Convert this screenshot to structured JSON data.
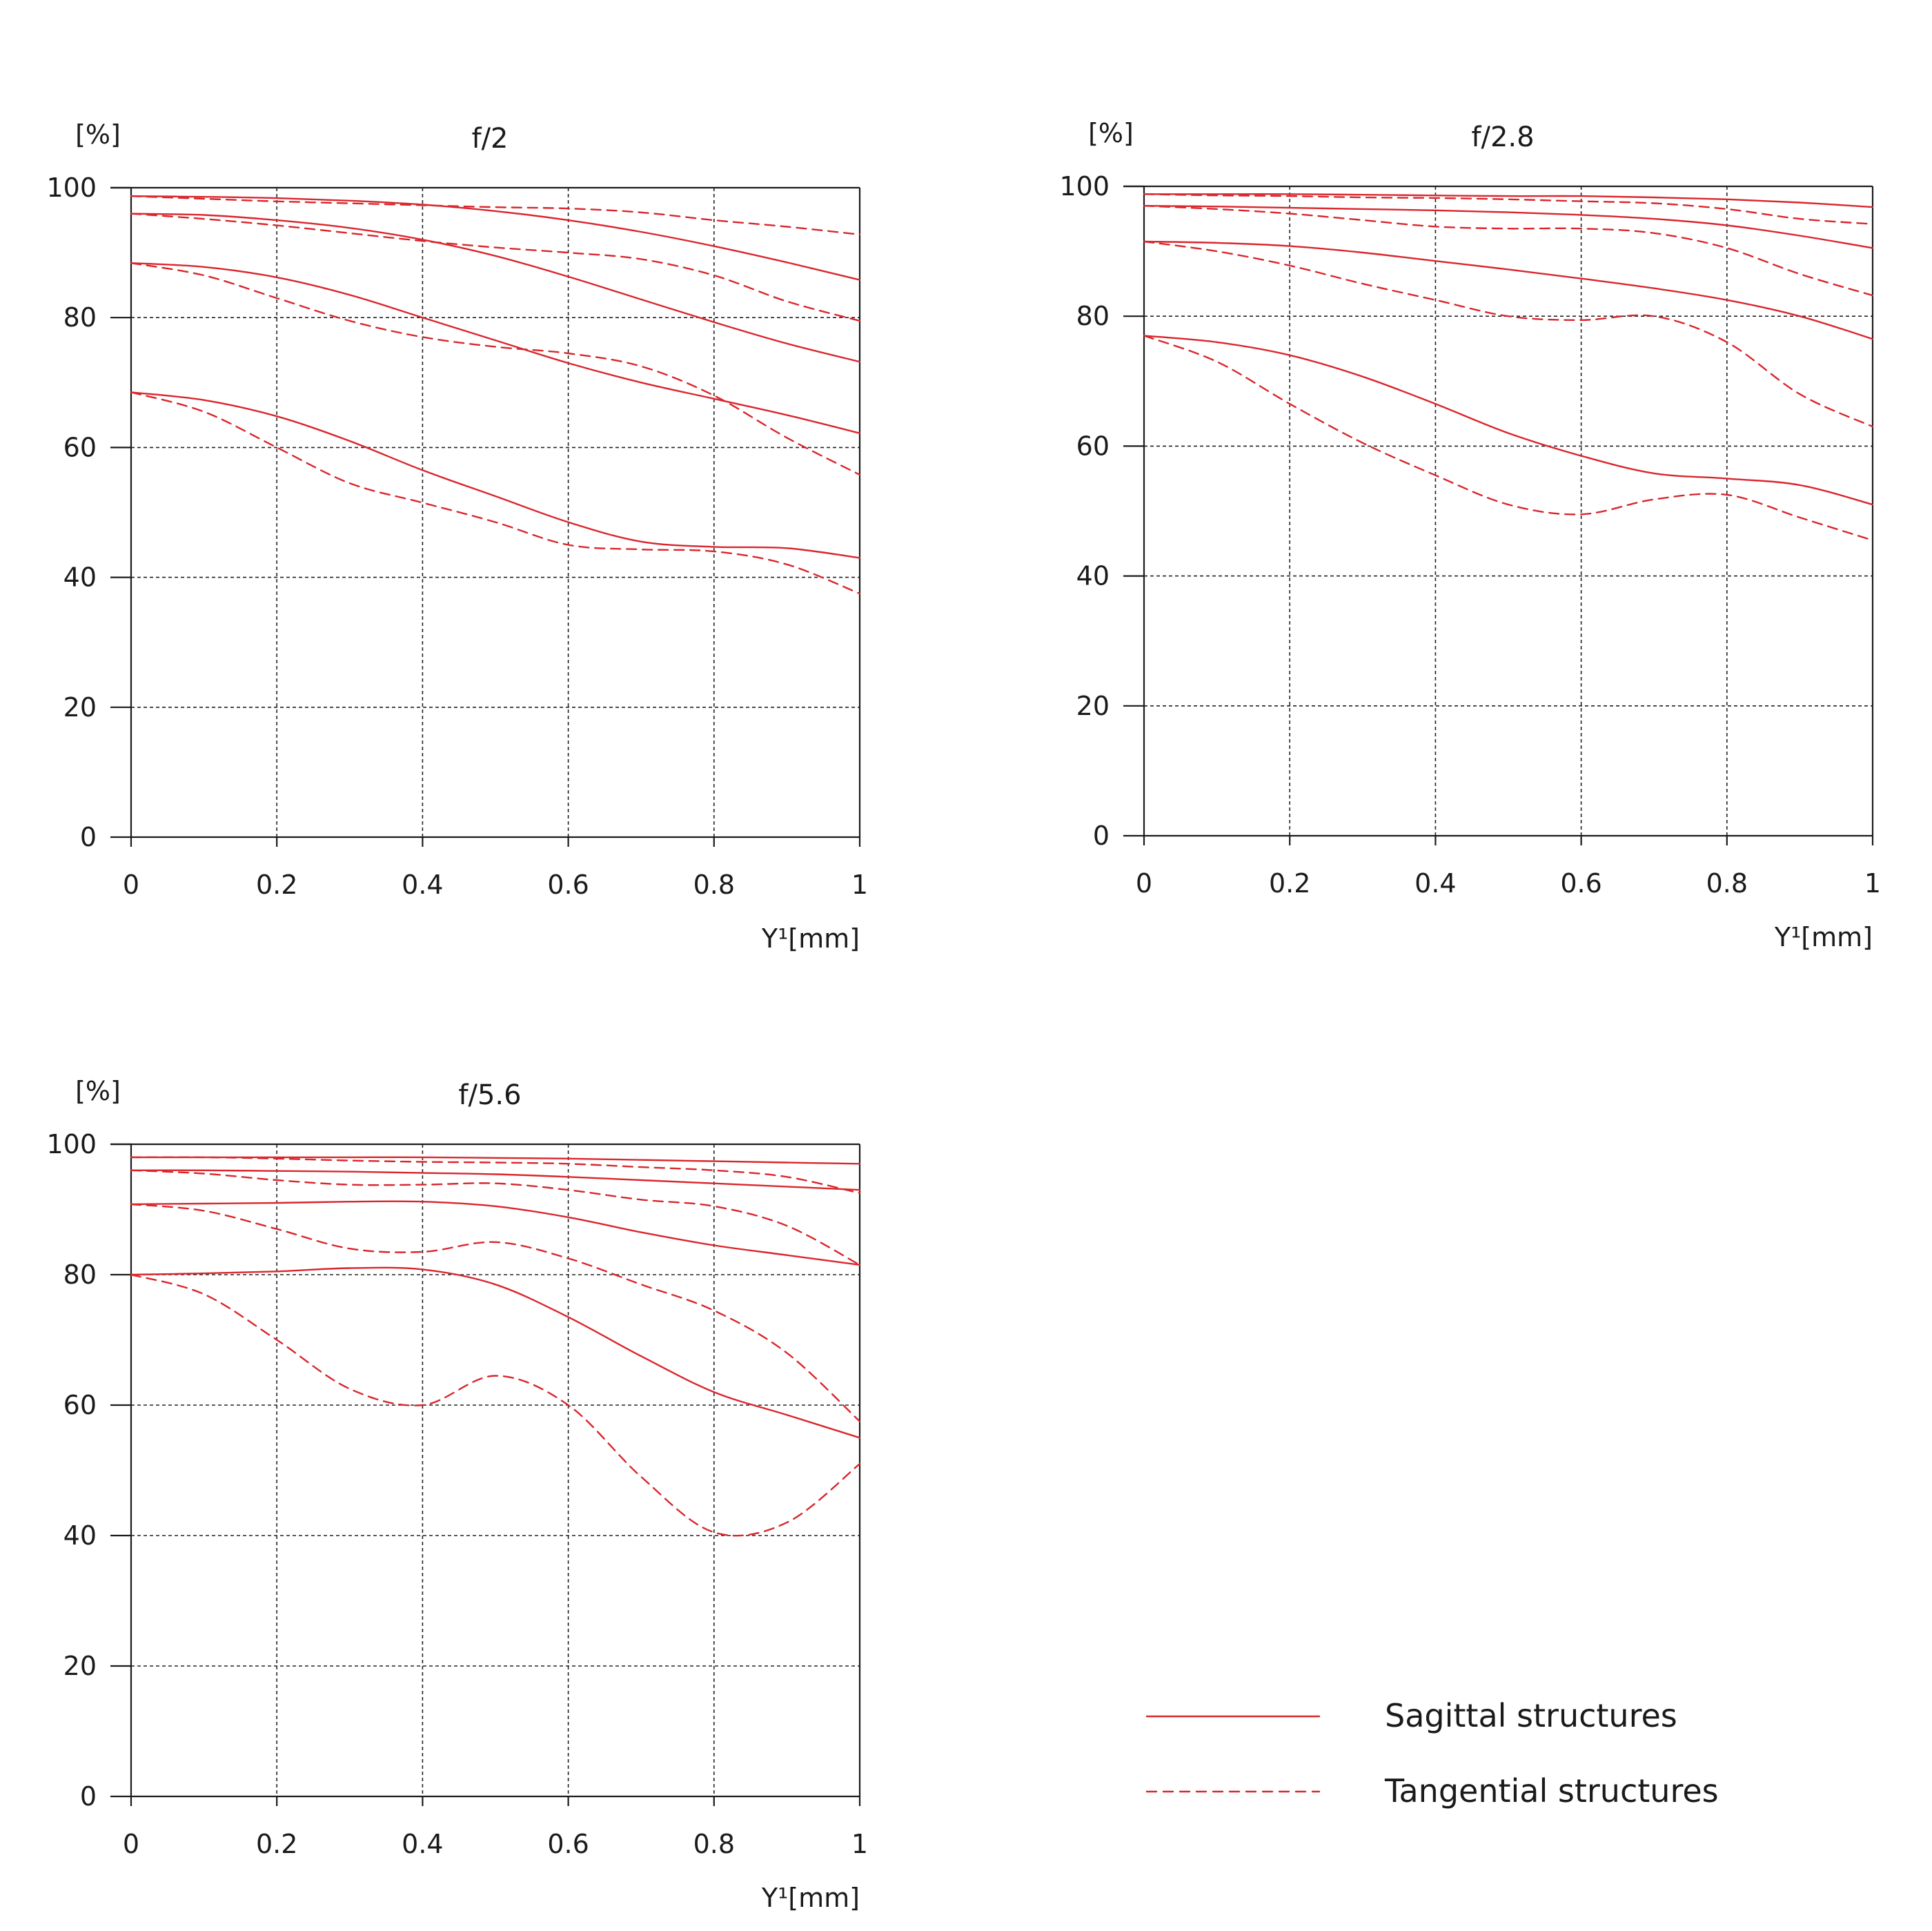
{
  "colors": {
    "curve": "#d9262c",
    "axis": "#1a1a1a",
    "grid": "#222222"
  },
  "legend": {
    "sagittal_label": "Sagittal structures",
    "tangential_label": "Tangential structures"
  },
  "chart_data": [
    {
      "type": "line",
      "title": "f/2",
      "ylabel": "[%]",
      "xlabel": "Y¹[mm]",
      "xlim": [
        0,
        1
      ],
      "ylim": [
        0,
        100
      ],
      "x_ticks": [
        "0",
        "0.2",
        "0.4",
        "0.6",
        "0.8",
        "1"
      ],
      "y_ticks": [
        "0",
        "20",
        "40",
        "60",
        "80",
        "100"
      ],
      "grid": true,
      "x": [
        0,
        0.1,
        0.2,
        0.3,
        0.4,
        0.5,
        0.6,
        0.7,
        0.8,
        0.9,
        1.0
      ],
      "series": [
        {
          "style": "solid",
          "values": [
            98.7,
            98.6,
            98.4,
            98.0,
            97.4,
            96.4,
            95.0,
            93.2,
            91.0,
            88.5,
            85.8
          ]
        },
        {
          "style": "dashed",
          "values": [
            98.7,
            98.3,
            97.9,
            97.6,
            97.3,
            97.0,
            96.8,
            96.2,
            95.0,
            94.0,
            92.8
          ]
        },
        {
          "style": "solid",
          "values": [
            96.0,
            95.8,
            95.0,
            93.8,
            92.0,
            89.5,
            86.3,
            82.8,
            79.3,
            76.0,
            73.2
          ]
        },
        {
          "style": "dashed",
          "values": [
            96.0,
            95.2,
            94.2,
            93.0,
            91.8,
            90.8,
            90.0,
            89.0,
            86.5,
            82.5,
            79.5
          ]
        },
        {
          "style": "solid",
          "values": [
            88.4,
            87.8,
            86.2,
            83.5,
            80.0,
            76.5,
            73.0,
            70.0,
            67.5,
            65.0,
            62.2
          ]
        },
        {
          "style": "dashed",
          "values": [
            88.4,
            86.5,
            83.0,
            79.5,
            77.0,
            75.5,
            74.5,
            72.5,
            68.0,
            61.5,
            55.8
          ]
        },
        {
          "style": "solid",
          "values": [
            68.5,
            67.3,
            64.8,
            61.0,
            56.5,
            52.5,
            48.5,
            45.5,
            44.7,
            44.5,
            43.0
          ]
        },
        {
          "style": "dashed",
          "values": [
            68.5,
            65.5,
            60.0,
            54.5,
            51.5,
            48.5,
            45.0,
            44.3,
            44.0,
            42.0,
            37.5
          ]
        }
      ]
    },
    {
      "type": "line",
      "title": "f/2.8",
      "ylabel": "[%]",
      "xlabel": "Y¹[mm]",
      "xlim": [
        0,
        1
      ],
      "ylim": [
        0,
        100
      ],
      "x_ticks": [
        "0",
        "0.2",
        "0.4",
        "0.6",
        "0.8",
        "1"
      ],
      "y_ticks": [
        "0",
        "20",
        "40",
        "60",
        "80",
        "100"
      ],
      "grid": true,
      "x": [
        0,
        0.1,
        0.2,
        0.3,
        0.4,
        0.5,
        0.6,
        0.7,
        0.8,
        0.9,
        1.0
      ],
      "series": [
        {
          "style": "solid",
          "values": [
            98.8,
            98.8,
            98.8,
            98.7,
            98.6,
            98.5,
            98.5,
            98.3,
            98.0,
            97.5,
            96.8
          ]
        },
        {
          "style": "dashed",
          "values": [
            98.8,
            98.6,
            98.5,
            98.3,
            98.2,
            98.0,
            97.7,
            97.4,
            96.5,
            95.0,
            94.2
          ]
        },
        {
          "style": "solid",
          "values": [
            97.0,
            96.9,
            96.7,
            96.5,
            96.3,
            96.0,
            95.6,
            95.0,
            94.0,
            92.4,
            90.5
          ]
        },
        {
          "style": "dashed",
          "values": [
            97.0,
            96.5,
            95.8,
            94.8,
            93.8,
            93.5,
            93.5,
            92.8,
            90.5,
            86.5,
            83.2
          ]
        },
        {
          "style": "solid",
          "values": [
            91.5,
            91.3,
            90.8,
            89.8,
            88.5,
            87.2,
            85.8,
            84.3,
            82.5,
            80.0,
            76.5
          ]
        },
        {
          "style": "dashed",
          "values": [
            91.5,
            90.0,
            87.8,
            85.0,
            82.5,
            80.0,
            79.4,
            80.0,
            76.0,
            68.0,
            63.0
          ]
        },
        {
          "style": "solid",
          "values": [
            77.0,
            76.0,
            74.0,
            70.7,
            66.5,
            62.0,
            58.5,
            55.8,
            55.0,
            54.0,
            51.0
          ]
        },
        {
          "style": "dashed",
          "values": [
            77.0,
            73.0,
            66.5,
            60.5,
            55.5,
            51.0,
            49.5,
            51.8,
            52.5,
            49.0,
            45.5
          ]
        }
      ]
    },
    {
      "type": "line",
      "title": "f/5.6",
      "ylabel": "[%]",
      "xlabel": "Y¹[mm]",
      "xlim": [
        0,
        1
      ],
      "ylim": [
        0,
        100
      ],
      "x_ticks": [
        "0",
        "0.2",
        "0.4",
        "0.6",
        "0.8",
        "1"
      ],
      "y_ticks": [
        "0",
        "20",
        "40",
        "60",
        "80",
        "100"
      ],
      "grid": true,
      "x": [
        0,
        0.1,
        0.2,
        0.3,
        0.4,
        0.5,
        0.6,
        0.7,
        0.8,
        0.9,
        1.0
      ],
      "series": [
        {
          "style": "solid",
          "values": [
            98.0,
            98.0,
            98.0,
            98.0,
            98.0,
            97.9,
            97.8,
            97.6,
            97.4,
            97.2,
            97.0
          ]
        },
        {
          "style": "dashed",
          "values": [
            98.0,
            98.0,
            97.8,
            97.5,
            97.3,
            97.2,
            97.0,
            96.5,
            96.0,
            95.0,
            92.5
          ]
        },
        {
          "style": "solid",
          "values": [
            96.0,
            96.0,
            95.9,
            95.8,
            95.6,
            95.4,
            95.0,
            94.5,
            94.0,
            93.5,
            93.0
          ]
        },
        {
          "style": "dashed",
          "values": [
            96.0,
            95.5,
            94.5,
            93.8,
            93.8,
            94.0,
            93.0,
            91.5,
            90.5,
            87.5,
            81.5
          ]
        },
        {
          "style": "solid",
          "values": [
            90.8,
            90.9,
            91.0,
            91.2,
            91.2,
            90.5,
            88.8,
            86.5,
            84.5,
            83.0,
            81.5
          ]
        },
        {
          "style": "dashed",
          "values": [
            90.8,
            89.8,
            87.0,
            84.0,
            83.5,
            85.0,
            82.5,
            78.5,
            74.5,
            68.0,
            57.5
          ]
        },
        {
          "style": "solid",
          "values": [
            80.0,
            80.2,
            80.5,
            81.0,
            80.8,
            78.5,
            73.5,
            67.5,
            62.0,
            58.5,
            55.0
          ]
        },
        {
          "style": "dashed",
          "values": [
            80.0,
            77.0,
            70.0,
            62.5,
            60.0,
            64.5,
            60.0,
            49.0,
            40.5,
            42.0,
            51.0
          ]
        }
      ]
    }
  ]
}
